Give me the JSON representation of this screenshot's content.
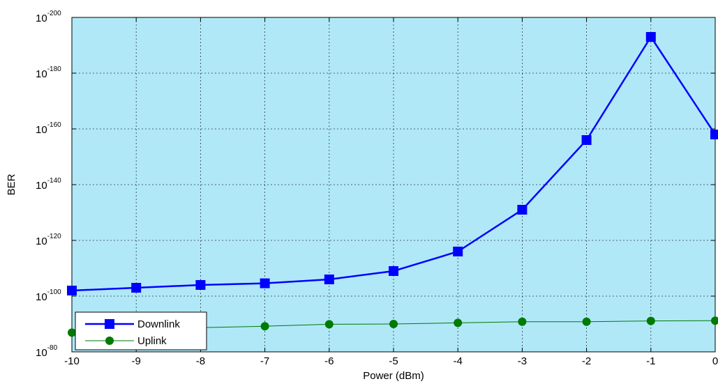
{
  "chart_data": {
    "type": "line",
    "xlabel": "Power (dBm)",
    "ylabel": "BER",
    "y_scale": "log",
    "xlim": [
      -10,
      0
    ],
    "ylim_exponent": [
      -200,
      -80
    ],
    "grid": true,
    "legend_position": "bottom-left",
    "background_color": "#b0e8f8",
    "x": [
      -10,
      -9,
      -8,
      -7,
      -6,
      -5,
      -4,
      -3,
      -2,
      -1,
      0
    ],
    "x_tick_labels": [
      "-10",
      "-9",
      "-8",
      "-7",
      "-6",
      "-5",
      "-4",
      "-3",
      "-2",
      "-1",
      "0"
    ],
    "y_tick_base": "10",
    "y_tick_exponents": [
      "-80",
      "-100",
      "-120",
      "-140",
      "-160",
      "-180",
      "-200"
    ],
    "series": [
      {
        "name": "Downlink",
        "color": "#0000ff",
        "marker": "square",
        "values_log10": [
          -102,
          -103,
          -104,
          -104.6,
          -106,
          -109,
          -116,
          -131,
          -156,
          -193,
          -158
        ]
      },
      {
        "name": "Uplink",
        "color": "#007a00",
        "marker": "circle",
        "values_log10": [
          -86.9,
          -88,
          -88.7,
          -89.2,
          -89.9,
          -90,
          -90.4,
          -90.8,
          -90.8,
          -91.1,
          -91.2
        ]
      }
    ]
  }
}
